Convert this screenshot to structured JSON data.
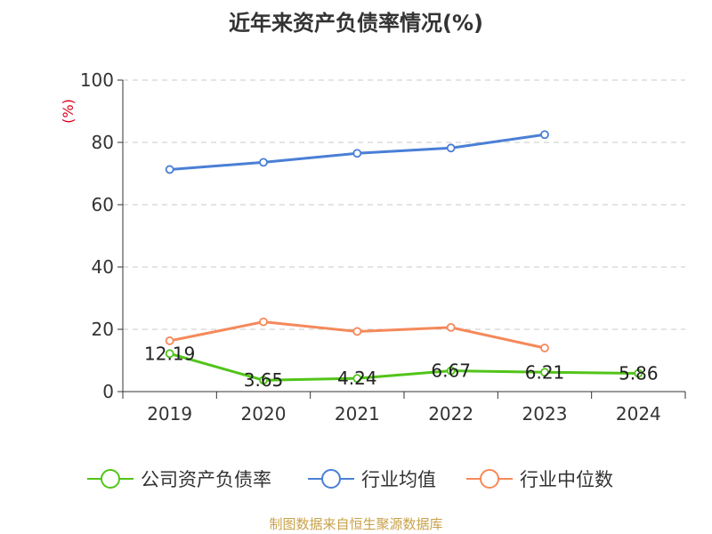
{
  "chart_title": "近年来资产负债率情况(%)",
  "source_text": "制图数据来自恒生聚源数据库",
  "colors": {
    "company": "#52c41a",
    "industry_avg": "#4a7fd6",
    "industry_median": "#f5895a",
    "unit_label": "#d9001b"
  },
  "chart_data": {
    "type": "line",
    "title": "近年来资产负债率情况(%)",
    "ylabel": "(%)",
    "ylim": [
      0,
      100
    ],
    "yticks": [
      0,
      20,
      40,
      60,
      80,
      100
    ],
    "categories": [
      "2019",
      "2020",
      "2021",
      "2022",
      "2023",
      "2024"
    ],
    "grid": true,
    "legend_position": "bottom",
    "series": [
      {
        "name": "公司资产负债率",
        "color": "#52c41a",
        "values": [
          12.19,
          3.65,
          4.24,
          6.67,
          6.21,
          5.86
        ],
        "labels": [
          "12.19",
          "3.65",
          "4.24",
          "6.67",
          "6.21",
          "5.86"
        ]
      },
      {
        "name": "行业均值",
        "color": "#4a7fd6",
        "values": [
          71.3,
          73.6,
          76.5,
          78.2,
          82.5,
          null
        ]
      },
      {
        "name": "行业中位数",
        "color": "#f5895a",
        "values": [
          16.3,
          22.4,
          19.3,
          20.6,
          14.0,
          null
        ]
      }
    ]
  }
}
